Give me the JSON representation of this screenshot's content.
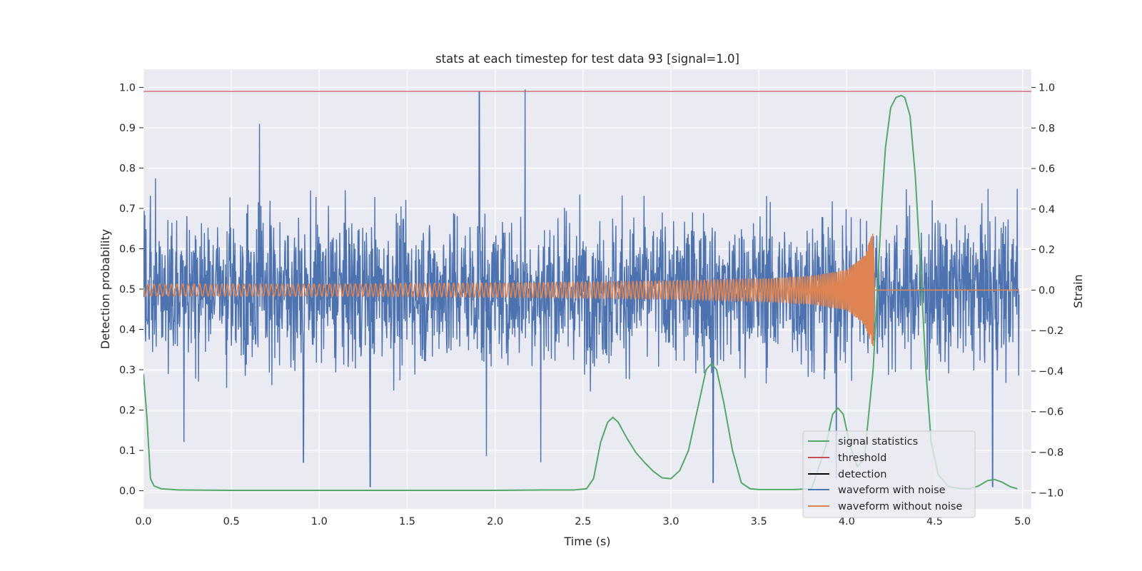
{
  "chart_data": {
    "type": "line",
    "title": "stats at each timestep for test data 93 [signal=1.0]",
    "xlabel": "Time (s)",
    "ylabel_left": "Detection probability",
    "ylabel_right": "Strain",
    "xlim": [
      0.0,
      5.05
    ],
    "ylim_left": [
      -0.045,
      1.045
    ],
    "ylim_right": [
      -1.08,
      1.09
    ],
    "x_ticks": [
      "0.0",
      "0.5",
      "1.0",
      "1.5",
      "2.0",
      "2.5",
      "3.0",
      "3.5",
      "4.0",
      "4.5",
      "5.0"
    ],
    "y_ticks_left": [
      "0.0",
      "0.1",
      "0.2",
      "0.3",
      "0.4",
      "0.5",
      "0.6",
      "0.7",
      "0.8",
      "0.9",
      "1.0"
    ],
    "y_ticks_right": [
      "−1.0",
      "−0.8",
      "−0.6",
      "−0.4",
      "−0.2",
      "0.0",
      "0.2",
      "0.4",
      "0.6",
      "0.8",
      "1.0"
    ],
    "grid": true,
    "legend_position": "lower-right",
    "colors": {
      "plot_background": "#eaeaf2",
      "grid": "#ffffff",
      "signal_statistics": "#55a868",
      "threshold": "#c44e52",
      "detection": "#000000",
      "waveform_with_noise": "#4c72b0",
      "waveform_without_noise": "#dd8452"
    },
    "series": [
      {
        "name": "signal statistics",
        "axis": "left",
        "x": [
          0.0,
          0.02,
          0.04,
          0.06,
          0.1,
          0.2,
          0.5,
          1.0,
          1.5,
          2.0,
          2.3,
          2.45,
          2.52,
          2.56,
          2.6,
          2.64,
          2.67,
          2.7,
          2.75,
          2.8,
          2.85,
          2.9,
          2.95,
          3.0,
          3.05,
          3.1,
          3.15,
          3.2,
          3.23,
          3.26,
          3.3,
          3.35,
          3.4,
          3.45,
          3.5,
          3.6,
          3.7,
          3.8,
          3.88,
          3.92,
          3.95,
          3.98,
          4.02,
          4.06,
          4.1,
          4.15,
          4.18,
          4.2,
          4.22,
          4.25,
          4.28,
          4.31,
          4.33,
          4.36,
          4.39,
          4.42,
          4.45,
          4.48,
          4.52,
          4.58,
          4.65,
          4.7,
          4.75,
          4.8,
          4.84,
          4.88,
          4.93,
          4.97
        ],
        "values": [
          0.29,
          0.18,
          0.03,
          0.012,
          0.005,
          0.002,
          0.001,
          0.001,
          0.001,
          0.001,
          0.002,
          0.002,
          0.005,
          0.03,
          0.12,
          0.17,
          0.182,
          0.17,
          0.13,
          0.095,
          0.07,
          0.048,
          0.032,
          0.03,
          0.05,
          0.1,
          0.2,
          0.3,
          0.315,
          0.3,
          0.22,
          0.1,
          0.02,
          0.005,
          0.003,
          0.003,
          0.003,
          0.005,
          0.11,
          0.19,
          0.205,
          0.19,
          0.11,
          0.06,
          0.08,
          0.3,
          0.55,
          0.72,
          0.85,
          0.95,
          0.975,
          0.98,
          0.975,
          0.93,
          0.78,
          0.55,
          0.3,
          0.12,
          0.04,
          0.01,
          0.005,
          0.005,
          0.012,
          0.025,
          0.028,
          0.022,
          0.01,
          0.005
        ]
      },
      {
        "name": "threshold",
        "axis": "left",
        "x": [
          0.0,
          5.0
        ],
        "values": [
          0.99,
          0.99
        ]
      },
      {
        "name": "detection",
        "axis": "left",
        "x": [],
        "values": []
      },
      {
        "name": "waveform with noise",
        "axis": "right",
        "description_visible": "dense noisy strain trace",
        "x": [
          0.0,
          0.23,
          0.66,
          0.91,
          1.29,
          1.91,
          1.95,
          2.17,
          2.26,
          3.24,
          3.94,
          4.83,
          4.97
        ],
        "values": [
          0.2,
          -0.75,
          0.82,
          -0.85,
          -0.97,
          0.98,
          -0.82,
          0.99,
          -0.85,
          -0.95,
          -0.93,
          -0.97,
          0.5
        ]
      },
      {
        "name": "waveform without noise",
        "axis": "right",
        "description_visible": "chirp signal with increasing amplitude and frequency until merger at ~4.15 s, then zero",
        "x": [
          0.0,
          1.0,
          2.0,
          3.0,
          3.5,
          3.8,
          4.0,
          4.1,
          4.15,
          4.16,
          5.0
        ],
        "values": [
          0.03,
          0.03,
          0.035,
          0.045,
          0.055,
          0.07,
          0.1,
          0.17,
          0.29,
          0.0,
          0.0
        ]
      }
    ]
  }
}
